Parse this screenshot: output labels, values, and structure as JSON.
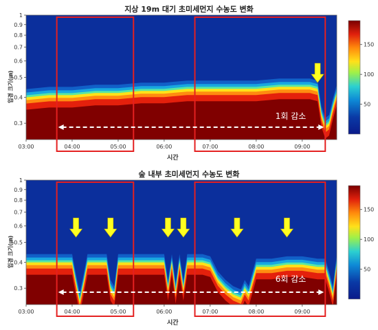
{
  "chart_data": [
    {
      "type": "heatmap",
      "title": "지상 19m 대기 초미세먼지 수농도 변화",
      "xlabel": "시간",
      "ylabel": "입경 크기(㎛)",
      "x_ticks": [
        "03:00",
        "04:00",
        "05:00",
        "06:00",
        "07:00",
        "08:00",
        "09:00"
      ],
      "y_ticks": [
        "1",
        "0.9",
        "0.8",
        "0.7",
        "0.6",
        "0.5",
        "0.4",
        "0.3"
      ],
      "y_scale": "log",
      "ylim": [
        0.25,
        1
      ],
      "xlim": [
        "03:00",
        "09:45"
      ],
      "colorbar_ticks": [
        "150",
        "100",
        "50"
      ],
      "colorbar_range": [
        0,
        190
      ],
      "annotation": "1회 감소",
      "arrow_count": 1,
      "boundary_series": {
        "name": "",
        "x": [
          "03:00",
          "03:30",
          "04:00",
          "04:30",
          "05:00",
          "05:30",
          "06:00",
          "06:30",
          "07:00",
          "07:30",
          "08:00",
          "08:30",
          "09:00",
          "09:10",
          "09:20",
          "09:25",
          "09:30",
          "09:35",
          "09:40",
          "09:45"
        ],
        "y": [
          0.4,
          0.41,
          0.41,
          0.42,
          0.42,
          0.43,
          0.43,
          0.44,
          0.44,
          0.44,
          0.44,
          0.45,
          0.45,
          0.45,
          0.44,
          0.33,
          0.29,
          0.3,
          0.36,
          0.42
        ]
      },
      "highlight_boxes": [
        {
          "from": "03:40",
          "to": "05:20"
        },
        {
          "from": "06:40",
          "to": "09:30"
        }
      ]
    },
    {
      "type": "heatmap",
      "title": "숲 내부 초미세먼지 수농도 변화",
      "xlabel": "시간",
      "ylabel": "입경 크기(㎛)",
      "x_ticks": [
        "03:00",
        "04:00",
        "05:00",
        "06:00",
        "07:00",
        "08:00",
        "09:00"
      ],
      "y_ticks": [
        "1",
        "0.9",
        "0.8",
        "0.7",
        "0.6",
        "0.5",
        "0.4",
        "0.3"
      ],
      "y_scale": "log",
      "ylim": [
        0.25,
        1
      ],
      "xlim": [
        "03:00",
        "09:45"
      ],
      "colorbar_ticks": [
        "150",
        "100",
        "50"
      ],
      "colorbar_range": [
        0,
        190
      ],
      "annotation": "6회 감소",
      "arrow_count": 6,
      "boundary_series": {
        "name": "",
        "x": [
          "03:00",
          "03:30",
          "04:00",
          "04:05",
          "04:10",
          "04:15",
          "04:20",
          "04:30",
          "04:45",
          "04:50",
          "04:55",
          "05:00",
          "05:10",
          "05:30",
          "06:00",
          "06:05",
          "06:10",
          "06:15",
          "06:20",
          "06:25",
          "06:30",
          "06:35",
          "06:40",
          "06:50",
          "07:00",
          "07:10",
          "07:20",
          "07:30",
          "07:40",
          "07:45",
          "07:50",
          "08:00",
          "08:20",
          "08:40",
          "09:00",
          "09:20",
          "09:30",
          "09:35",
          "09:40",
          "09:45"
        ],
        "y": [
          0.4,
          0.4,
          0.4,
          0.32,
          0.26,
          0.32,
          0.4,
          0.4,
          0.4,
          0.3,
          0.28,
          0.4,
          0.4,
          0.4,
          0.4,
          0.3,
          0.4,
          0.29,
          0.4,
          0.3,
          0.4,
          0.4,
          0.4,
          0.4,
          0.39,
          0.33,
          0.3,
          0.28,
          0.27,
          0.3,
          0.28,
          0.38,
          0.38,
          0.39,
          0.39,
          0.38,
          0.38,
          0.33,
          0.28,
          0.4
        ]
      },
      "highlight_boxes": [
        {
          "from": "03:40",
          "to": "05:20"
        },
        {
          "from": "06:40",
          "to": "09:30"
        }
      ]
    }
  ]
}
